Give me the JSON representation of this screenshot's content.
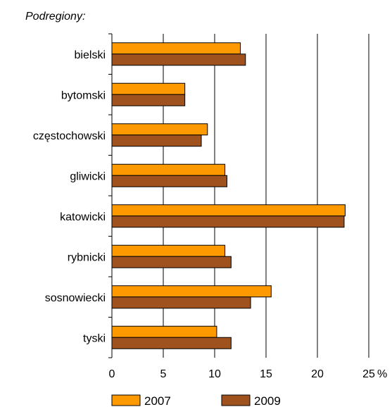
{
  "chart_data": {
    "type": "bar",
    "orientation": "horizontal",
    "title": "Podregiony:",
    "categories": [
      "bielski",
      "bytomski",
      "częstochowski",
      "gliwicki",
      "katowicki",
      "rybnicki",
      "sosnowiecki",
      "tyski"
    ],
    "series": [
      {
        "name": "2007",
        "values": [
          12.5,
          7.1,
          9.3,
          11.0,
          22.7,
          11.0,
          15.5,
          10.2
        ],
        "color": "#ff9900"
      },
      {
        "name": "2009",
        "values": [
          13.0,
          7.1,
          8.7,
          11.2,
          22.6,
          11.6,
          13.5,
          11.6
        ],
        "color": "#a0521e"
      }
    ],
    "xlim": [
      0,
      25
    ],
    "xticks": [
      "0",
      "5",
      "10",
      "15",
      "20",
      "25"
    ],
    "x_unit": "%",
    "grid": "vertical",
    "legend_position": "bottom"
  }
}
